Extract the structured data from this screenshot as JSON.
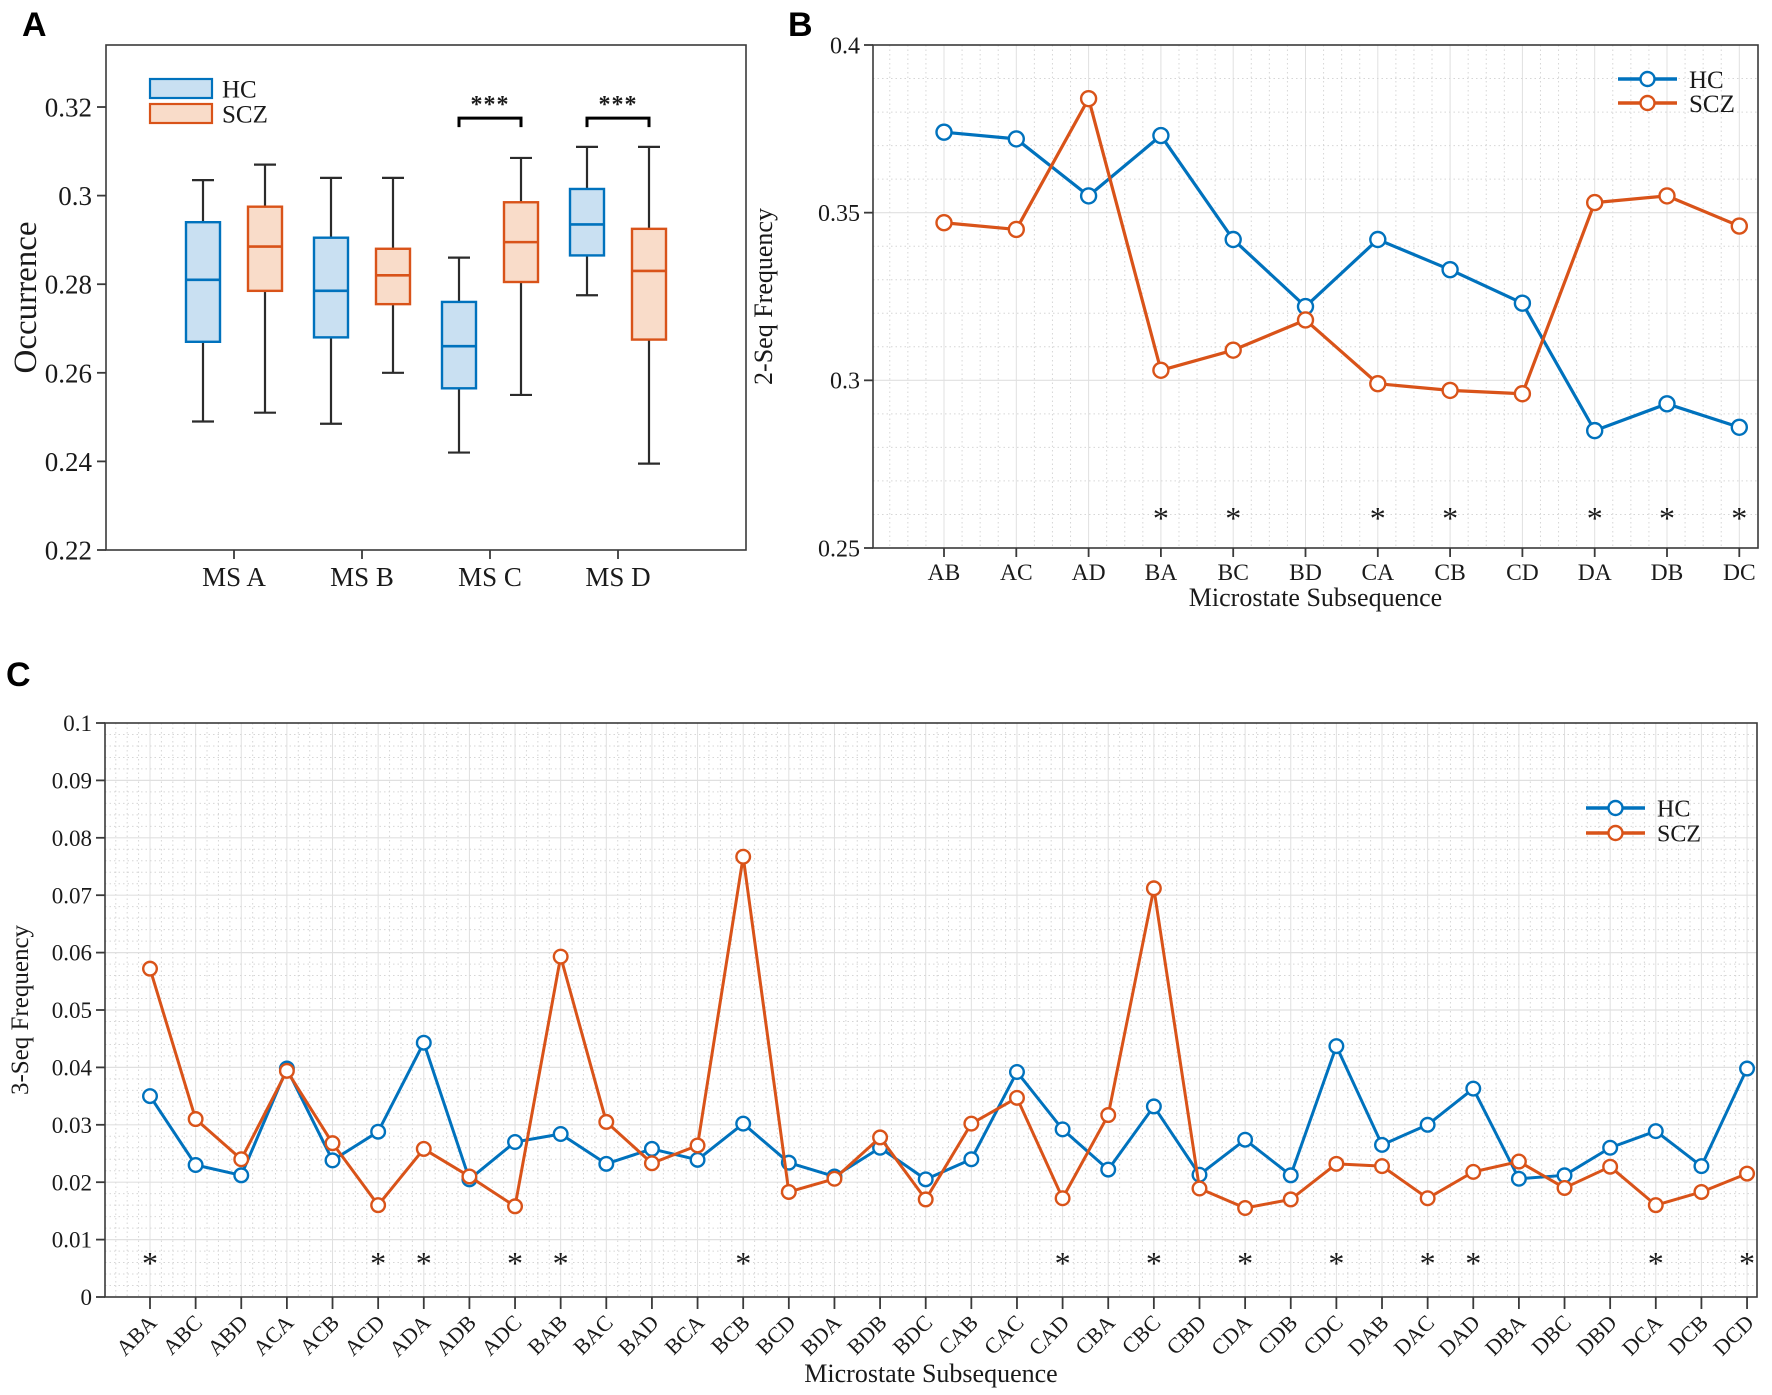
{
  "colors": {
    "hc_line": "#0072BD",
    "scz_line": "#D95319",
    "hc_fill": "#C9E0F2",
    "scz_fill": "#F9DCC9",
    "whisker": "#2B2B2B",
    "frame": "#3A3A3A",
    "grid_major": "#E0E0E0",
    "grid_minor": "#D6D6D6",
    "text": "#1A1A1A",
    "background": "#FFFFFF"
  },
  "chart_data": [
    {
      "id": "panel-a",
      "panel_label": "A",
      "type": "boxplot",
      "title": "",
      "xlabel": "",
      "ylabel": "Occurrence",
      "ylim": [
        0.22,
        0.334
      ],
      "yticks": {
        "values": [
          0.22,
          0.24,
          0.26,
          0.28,
          0.3,
          0.32
        ],
        "labels": [
          "0.22",
          "0.24",
          "0.26",
          "0.28",
          "0.3",
          "0.32"
        ]
      },
      "categories": [
        "MS A",
        "MS B",
        "MS C",
        "MS D"
      ],
      "grid": "off",
      "legend": {
        "entries": [
          "HC",
          "SCZ"
        ],
        "position": "top-left-inside"
      },
      "series": [
        {
          "name": "HC",
          "boxes": [
            {
              "whislo": 0.249,
              "q1": 0.267,
              "med": 0.281,
              "q3": 0.294,
              "whishi": 0.3035
            },
            {
              "whislo": 0.2485,
              "q1": 0.268,
              "med": 0.2785,
              "q3": 0.2905,
              "whishi": 0.304
            },
            {
              "whislo": 0.242,
              "q1": 0.2565,
              "med": 0.266,
              "q3": 0.276,
              "whishi": 0.286
            },
            {
              "whislo": 0.2775,
              "q1": 0.2865,
              "med": 0.2935,
              "q3": 0.3015,
              "whishi": 0.311
            }
          ]
        },
        {
          "name": "SCZ",
          "boxes": [
            {
              "whislo": 0.251,
              "q1": 0.2785,
              "med": 0.2885,
              "q3": 0.2975,
              "whishi": 0.307
            },
            {
              "whislo": 0.26,
              "q1": 0.2755,
              "med": 0.282,
              "q3": 0.288,
              "whishi": 0.304
            },
            {
              "whislo": 0.255,
              "q1": 0.2805,
              "med": 0.2895,
              "q3": 0.2985,
              "whishi": 0.3085
            },
            {
              "whislo": 0.2395,
              "q1": 0.2675,
              "med": 0.283,
              "q3": 0.2925,
              "whishi": 0.311
            }
          ]
        }
      ],
      "significance": [
        {
          "category": "MS C",
          "label": "***",
          "y": 0.3175
        },
        {
          "category": "MS D",
          "label": "***",
          "y": 0.3175
        }
      ]
    },
    {
      "id": "panel-b",
      "panel_label": "B",
      "type": "line",
      "title": "",
      "xlabel": "Microstate Subsequence",
      "ylabel": "2-Seq Frequency",
      "ylim": [
        0.25,
        0.4
      ],
      "yticks": {
        "values": [
          0.25,
          0.3,
          0.35,
          0.4
        ],
        "labels": [
          "0.25",
          "0.3",
          "0.35",
          "0.4"
        ]
      },
      "categories": [
        "AB",
        "AC",
        "AD",
        "BA",
        "BC",
        "BD",
        "CA",
        "CB",
        "CD",
        "DA",
        "DB",
        "DC"
      ],
      "grid": "major+minor-dotted",
      "legend": {
        "entries": [
          "HC",
          "SCZ"
        ],
        "position": "top-right-inside"
      },
      "series": [
        {
          "name": "HC",
          "values": [
            0.374,
            0.372,
            0.355,
            0.373,
            0.342,
            0.322,
            0.342,
            0.333,
            0.323,
            0.285,
            0.293,
            0.286
          ]
        },
        {
          "name": "SCZ",
          "values": [
            0.347,
            0.345,
            0.384,
            0.303,
            0.309,
            0.318,
            0.299,
            0.297,
            0.296,
            0.353,
            0.355,
            0.346
          ]
        }
      ],
      "asterisks": {
        "categories": [
          "BA",
          "BC",
          "CA",
          "CB",
          "DA",
          "DB",
          "DC"
        ],
        "y": 0.26,
        "symbol": "*"
      }
    },
    {
      "id": "panel-c",
      "panel_label": "C",
      "type": "line",
      "title": "",
      "xlabel": "Microstate Subsequence",
      "ylabel": "3-Seq Frequency",
      "ylim": [
        0,
        0.1
      ],
      "yticks": {
        "values": [
          0,
          0.01,
          0.02,
          0.03,
          0.04,
          0.05,
          0.06,
          0.07,
          0.08,
          0.09,
          0.1
        ],
        "labels": [
          "0",
          "0.01",
          "0.02",
          "0.03",
          "0.04",
          "0.05",
          "0.06",
          "0.07",
          "0.08",
          "0.09",
          "0.1"
        ]
      },
      "categories": [
        "ABA",
        "ABC",
        "ABD",
        "ACA",
        "ACB",
        "ACD",
        "ADA",
        "ADB",
        "ADC",
        "BAB",
        "BAC",
        "BAD",
        "BCA",
        "BCB",
        "BCD",
        "BDA",
        "BDB",
        "BDC",
        "CAB",
        "CAC",
        "CAD",
        "CBA",
        "CBC",
        "CBD",
        "CDA",
        "CDB",
        "CDC",
        "DAB",
        "DAC",
        "DAD",
        "DBA",
        "DBC",
        "DBD",
        "DCA",
        "DCB",
        "DCD"
      ],
      "xtick_rotation": 45,
      "grid": "major+minor-dotted",
      "legend": {
        "entries": [
          "HC",
          "SCZ"
        ],
        "position": "right-inside"
      },
      "series": [
        {
          "name": "HC",
          "values": [
            0.035,
            0.023,
            0.0212,
            0.0398,
            0.0238,
            0.0288,
            0.0443,
            0.0205,
            0.027,
            0.0284,
            0.0232,
            0.0258,
            0.0239,
            0.0302,
            0.0234,
            0.021,
            0.026,
            0.0205,
            0.024,
            0.0392,
            0.0292,
            0.0222,
            0.0332,
            0.0213,
            0.0274,
            0.0212,
            0.0437,
            0.0265,
            0.03,
            0.0363,
            0.0206,
            0.0212,
            0.026,
            0.0289,
            0.0228,
            0.0398
          ]
        },
        {
          "name": "SCZ",
          "values": [
            0.0572,
            0.031,
            0.024,
            0.0394,
            0.0268,
            0.016,
            0.0258,
            0.021,
            0.0158,
            0.0593,
            0.0305,
            0.0233,
            0.0264,
            0.0767,
            0.0183,
            0.0206,
            0.0278,
            0.017,
            0.0302,
            0.0347,
            0.0172,
            0.0317,
            0.0712,
            0.0189,
            0.0155,
            0.017,
            0.0232,
            0.0228,
            0.0172,
            0.0218,
            0.0236,
            0.019,
            0.0227,
            0.016,
            0.0183,
            0.0215
          ]
        }
      ],
      "asterisks": {
        "categories": [
          "ABA",
          "ACD",
          "ADA",
          "ADC",
          "BAB",
          "BCB",
          "CAD",
          "CBC",
          "CDA",
          "CDC",
          "DAC",
          "DAD",
          "DCA",
          "DCD"
        ],
        "y": 0.0065,
        "symbol": "*"
      }
    }
  ]
}
